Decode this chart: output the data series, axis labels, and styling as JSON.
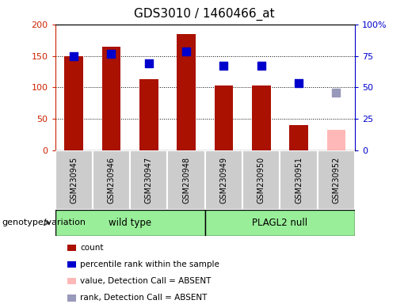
{
  "title": "GDS3010 / 1460466_at",
  "samples": [
    "GSM230945",
    "GSM230946",
    "GSM230947",
    "GSM230948",
    "GSM230949",
    "GSM230950",
    "GSM230951",
    "GSM230952"
  ],
  "count_values": [
    150,
    165,
    113,
    185,
    103,
    103,
    40,
    null
  ],
  "count_absent_values": [
    null,
    null,
    null,
    null,
    null,
    null,
    null,
    33
  ],
  "rank_values": [
    75,
    76.5,
    69,
    78.5,
    67,
    67,
    53.5,
    null
  ],
  "rank_absent_values": [
    null,
    null,
    null,
    null,
    null,
    null,
    null,
    46
  ],
  "left_ylim": [
    0,
    200
  ],
  "right_ylim": [
    0,
    100
  ],
  "left_yticks": [
    0,
    50,
    100,
    150,
    200
  ],
  "left_yticklabels": [
    "0",
    "50",
    "100",
    "150",
    "200"
  ],
  "right_yticks": [
    0,
    25,
    50,
    75,
    100
  ],
  "right_yticklabels": [
    "0",
    "25",
    "50",
    "75",
    "100%"
  ],
  "bar_color_present": "#aa1100",
  "bar_color_absent": "#ffb8b8",
  "rank_color_present": "#0000cc",
  "rank_color_absent": "#9999bb",
  "bar_width": 0.5,
  "wild_type_label": "wild type",
  "plagl2_null_label": "PLAGL2 null",
  "genotype_label": "genotype/variation",
  "legend_items": [
    "count",
    "percentile rank within the sample",
    "value, Detection Call = ABSENT",
    "rank, Detection Call = ABSENT"
  ],
  "legend_colors": [
    "#aa1100",
    "#0000cc",
    "#ffb8b8",
    "#9999bb"
  ],
  "grid_color": "#000000",
  "grid_linewidth": 0.7,
  "left_axis_color": "#cc2200",
  "right_axis_color": "#0000cc",
  "tick_label_fontsize": 8,
  "title_fontsize": 11,
  "rank_marker_size": 55,
  "green_color": "#99ee99",
  "gray_color": "#cccccc"
}
